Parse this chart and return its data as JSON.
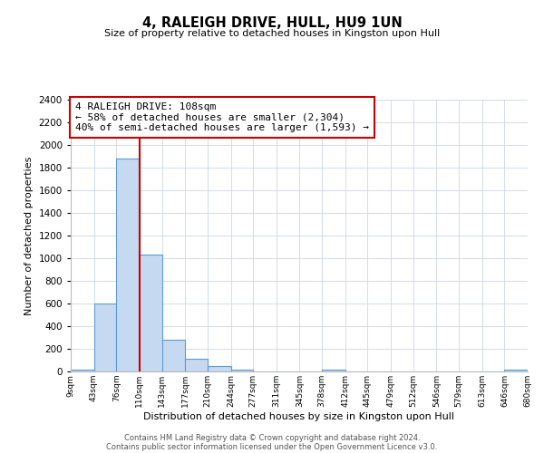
{
  "title": "4, RALEIGH DRIVE, HULL, HU9 1UN",
  "subtitle": "Size of property relative to detached houses in Kingston upon Hull",
  "xlabel": "Distribution of detached houses by size in Kingston upon Hull",
  "ylabel": "Number of detached properties",
  "bin_edges": [
    9,
    43,
    76,
    110,
    143,
    177,
    210,
    244,
    277,
    311,
    345,
    378,
    412,
    445,
    479,
    512,
    546,
    579,
    613,
    646,
    680
  ],
  "bin_labels": [
    "9sqm",
    "43sqm",
    "76sqm",
    "110sqm",
    "143sqm",
    "177sqm",
    "210sqm",
    "244sqm",
    "277sqm",
    "311sqm",
    "345sqm",
    "378sqm",
    "412sqm",
    "445sqm",
    "479sqm",
    "512sqm",
    "546sqm",
    "579sqm",
    "613sqm",
    "646sqm",
    "680sqm"
  ],
  "counts": [
    20,
    600,
    1880,
    1030,
    280,
    110,
    45,
    20,
    0,
    0,
    0,
    15,
    0,
    0,
    0,
    0,
    0,
    0,
    0,
    15
  ],
  "bar_color": "#c5d9f0",
  "bar_edge_color": "#5b9bd5",
  "property_line_x": 110,
  "property_line_color": "#cc0000",
  "annotation_line1": "4 RALEIGH DRIVE: 108sqm",
  "annotation_line2": "← 58% of detached houses are smaller (2,304)",
  "annotation_line3": "40% of semi-detached houses are larger (1,593) →",
  "annotation_box_color": "#ffffff",
  "annotation_box_edge": "#cc0000",
  "ylim": [
    0,
    2400
  ],
  "yticks": [
    0,
    200,
    400,
    600,
    800,
    1000,
    1200,
    1400,
    1600,
    1800,
    2000,
    2200,
    2400
  ],
  "footer1": "Contains HM Land Registry data © Crown copyright and database right 2024.",
  "footer2": "Contains public sector information licensed under the Open Government Licence v3.0.",
  "bg_color": "#ffffff",
  "grid_color": "#cdd6e8"
}
